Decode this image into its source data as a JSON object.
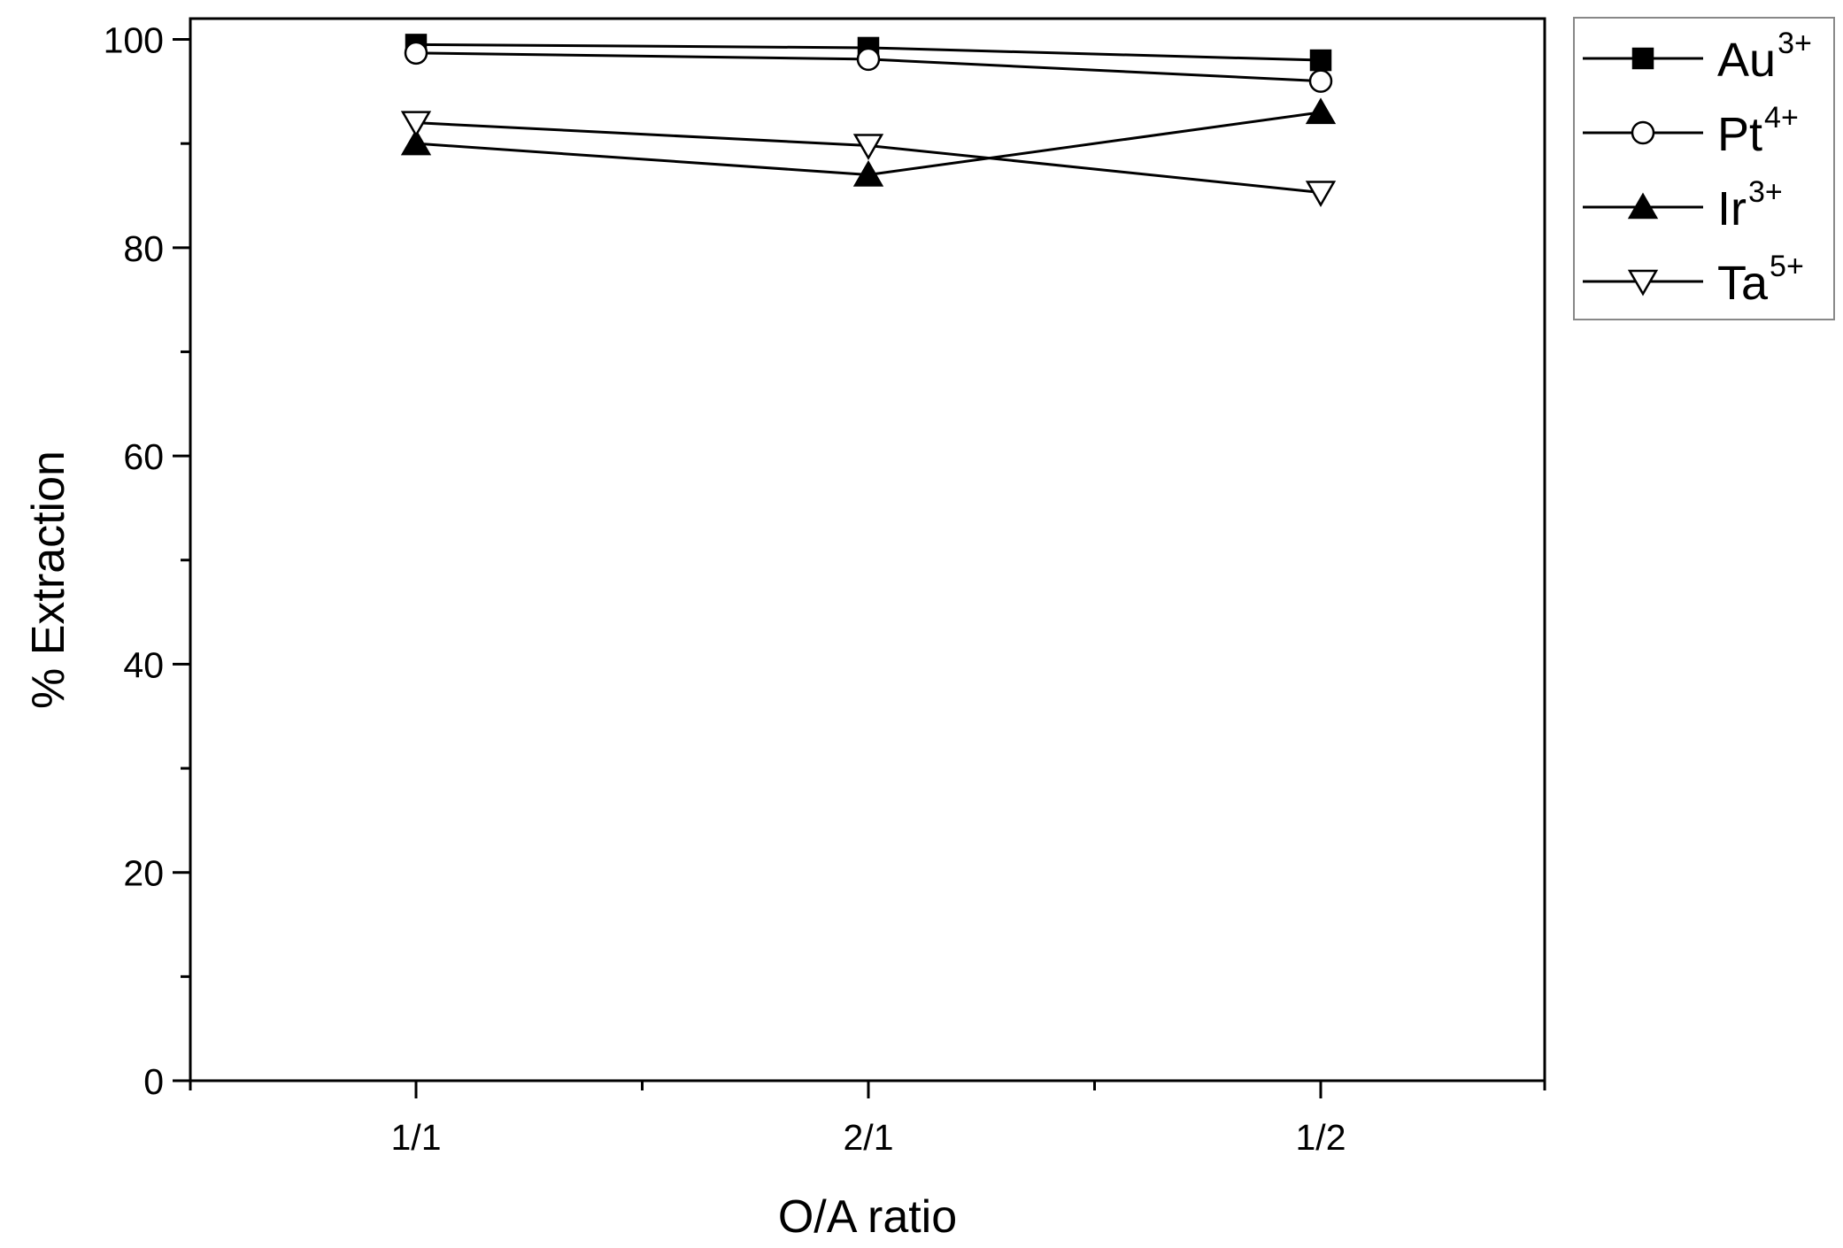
{
  "chart_data": {
    "type": "line",
    "xlabel": "O/A ratio",
    "ylabel": "% Extraction",
    "categories": [
      "1/1",
      "2/1",
      "1/2"
    ],
    "ylim": [
      0,
      102
    ],
    "yticks": [
      0,
      20,
      40,
      60,
      80,
      100
    ],
    "y_minor_step": 10,
    "grid": false,
    "legend_position": "outside-top-right",
    "series": [
      {
        "name": "Au",
        "sup": "3+",
        "marker": "square",
        "fill": "#000000",
        "values": [
          99.5,
          99.2,
          98.0
        ]
      },
      {
        "name": "Pt",
        "sup": "4+",
        "marker": "circle",
        "fill": "#ffffff",
        "values": [
          98.7,
          98.1,
          96.0
        ]
      },
      {
        "name": "Ir ",
        "sup": "3+",
        "marker": "triangle-up",
        "fill": "#000000",
        "values": [
          90.0,
          87.0,
          93.0
        ]
      },
      {
        "name": "Ta",
        "sup": "5+",
        "marker": "triangle-down",
        "fill": "#ffffff",
        "values": [
          92.0,
          89.8,
          85.3
        ]
      }
    ]
  }
}
